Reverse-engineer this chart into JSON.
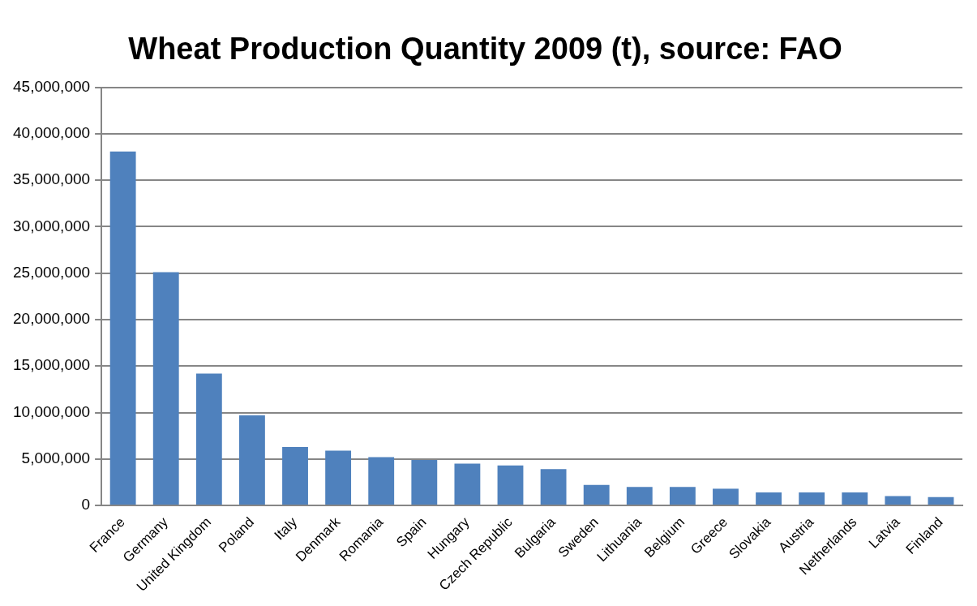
{
  "chart_data": {
    "type": "bar",
    "title": "Wheat Production Quantity 2009 (t), source: FAO",
    "categories": [
      "France",
      "Germany",
      "United Kingdom",
      "Poland",
      "Italy",
      "Denmark",
      "Romania",
      "Spain",
      "Hungary",
      "Czech Republic",
      "Bulgaria",
      "Sweden",
      "Lithuania",
      "Belgium",
      "Greece",
      "Slovakia",
      "Austria",
      "Netherlands",
      "Latvia",
      "Finland"
    ],
    "values": [
      38100000,
      25100000,
      14200000,
      9700000,
      6300000,
      5900000,
      5200000,
      4900000,
      4500000,
      4300000,
      3900000,
      2200000,
      2000000,
      2000000,
      1800000,
      1400000,
      1400000,
      1400000,
      1000000,
      900000
    ],
    "color": "#4f81bd",
    "ylim": [
      0,
      45000000
    ],
    "yticks": [
      0,
      {
        "value": 5000000,
        "label": "5,000,000"
      },
      {
        "value": 10000000,
        "label": "10,000,000"
      },
      {
        "value": 15000000,
        "label": "15,000,000"
      },
      {
        "value": 20000000,
        "label": "20,000,000"
      },
      {
        "value": 25000000,
        "label": "25,000,000"
      },
      {
        "value": 30000000,
        "label": "30,000,000"
      },
      {
        "value": 35000000,
        "label": "35,000,000"
      },
      {
        "value": 40000000,
        "label": "40,000,000"
      },
      {
        "value": 45000000,
        "label": "45,000,000"
      }
    ],
    "grid": "y",
    "legend": false
  }
}
